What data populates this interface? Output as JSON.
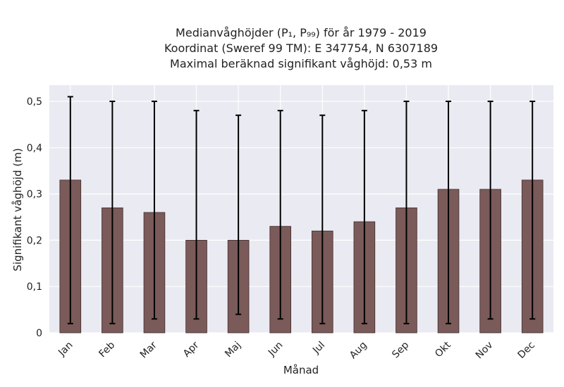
{
  "chart_data": {
    "type": "bar",
    "title_lines": [
      "Medianvåghöjder (P₁, P₉₉) för år 1979 - 2019",
      "Koordinat (Sweref 99 TM): E 347754, N 6307189",
      "Maximal beräknad signifikant våghöjd: 0,53 m"
    ],
    "xlabel": "Månad",
    "ylabel": "Signifikant våghöjd (m)",
    "categories": [
      "Jan",
      "Feb",
      "Mar",
      "Apr",
      "Maj",
      "Jun",
      "Jul",
      "Aug",
      "Sep",
      "Okt",
      "Nov",
      "Dec"
    ],
    "values": [
      0.33,
      0.27,
      0.26,
      0.2,
      0.2,
      0.23,
      0.22,
      0.24,
      0.27,
      0.31,
      0.31,
      0.33
    ],
    "p1": [
      0.02,
      0.02,
      0.03,
      0.03,
      0.04,
      0.03,
      0.02,
      0.02,
      0.02,
      0.02,
      0.03,
      0.03
    ],
    "p99": [
      0.51,
      0.5,
      0.5,
      0.48,
      0.47,
      0.48,
      0.47,
      0.48,
      0.5,
      0.5,
      0.5,
      0.5
    ],
    "ylim": [
      0,
      0.535
    ],
    "yticks": [
      0,
      0.1,
      0.2,
      0.3,
      0.4,
      0.5
    ],
    "ytick_labels": [
      "0",
      "0,1",
      "0,2",
      "0,3",
      "0,4",
      "0,5"
    ],
    "grid": true,
    "legend": "none",
    "colors": {
      "bar": "#7b5a5a",
      "bar_edge": "#3f2e2e",
      "errorbar": "#000000",
      "plot_bg": "#eaeaf2",
      "grid": "#ffffff"
    }
  }
}
